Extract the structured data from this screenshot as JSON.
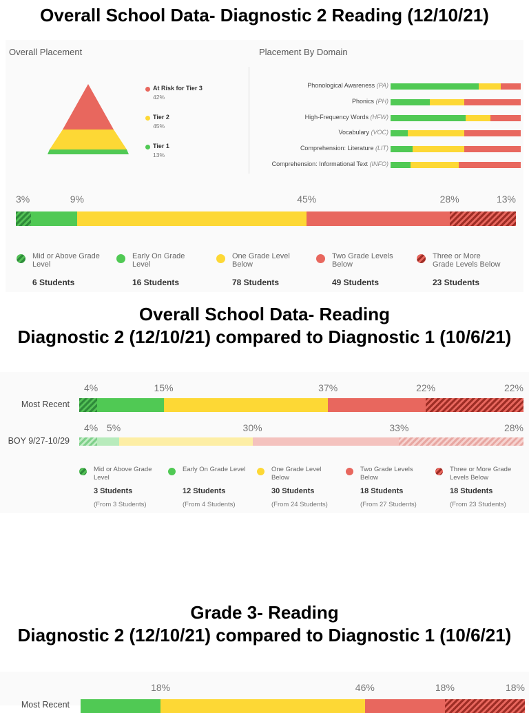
{
  "titles": {
    "t1": "Overall School Data- Diagnostic 2 Reading (12/10/21)",
    "t2a": "Overall School Data- Reading",
    "t2b": "Diagnostic 2 (12/10/21) compared to Diagnostic 1 (10/6/21)",
    "t3a": "Grade 3- Reading",
    "t3b": "Diagnostic 2 (12/10/21) compared to Diagnostic 1 (10/6/21)"
  },
  "colors": {
    "green": "#50c954",
    "green_dark": "#2e8b3a",
    "yellow": "#fdd835",
    "red": "#e8675e",
    "red_dark": "#a13027",
    "green_light": "#b8ebbc",
    "yellow_light": "#fdeea5",
    "red_light": "#f4c2be"
  },
  "placement": {
    "overall_label": "Overall Placement",
    "domain_label": "Placement By Domain",
    "tiers": [
      {
        "name": "At Risk for Tier 3",
        "pct": "42%",
        "color": "#e8675e"
      },
      {
        "name": "Tier 2",
        "pct": "45%",
        "color": "#fdd835"
      },
      {
        "name": "Tier 1",
        "pct": "13%",
        "color": "#50c954"
      }
    ],
    "domains": [
      {
        "name": "Phonological Awareness",
        "abbr": "(PA)",
        "green": 61,
        "yellow": 15,
        "red": 14
      },
      {
        "name": "Phonics",
        "abbr": "(PH)",
        "green": 27,
        "yellow": 24,
        "red": 39
      },
      {
        "name": "High-Frequency Words",
        "abbr": "(HFW)",
        "green": 52,
        "yellow": 17,
        "red": 21
      },
      {
        "name": "Vocabulary",
        "abbr": "(VOC)",
        "green": 12,
        "yellow": 39,
        "red": 39
      },
      {
        "name": "Comprehension: Literature",
        "abbr": "(LIT)",
        "green": 15,
        "yellow": 36,
        "red": 39
      },
      {
        "name": "Comprehension: Informational Text",
        "abbr": "(INFO)",
        "green": 14,
        "yellow": 33,
        "red": 43
      }
    ]
  },
  "legend_labels": [
    "Mid or Above Grade Level",
    "Early On Grade Level",
    "One Grade Level Below",
    "Two Grade Levels Below",
    "Three or More Grade Levels Below"
  ],
  "chart_data": [
    {
      "type": "bar",
      "title": "Overall School Data- Diagnostic 2 Reading (12/10/21)",
      "categories": [
        "Mid or Above Grade Level",
        "Early On Grade Level",
        "One Grade Level Below",
        "Two Grade Levels Below",
        "Three or More Grade Levels Below"
      ],
      "series": [
        {
          "values": [
            3,
            9,
            45,
            28,
            13
          ],
          "labels": [
            "3%",
            "9%",
            "45%",
            "28%",
            "13%"
          ]
        }
      ],
      "counts": [
        "6 Students",
        "16 Students",
        "78 Students",
        "49 Students",
        "23 Students"
      ]
    },
    {
      "type": "bar",
      "title": "Overall School Data- Reading Diagnostic 2 (12/10/21) compared to Diagnostic 1 (10/6/21)",
      "categories": [
        "Mid or Above Grade Level",
        "Early On Grade Level",
        "One Grade Level Below",
        "Two Grade Levels Below",
        "Three or More Grade Levels Below"
      ],
      "series": [
        {
          "name": "Most Recent",
          "values": [
            4,
            15,
            37,
            22,
            22
          ],
          "labels": [
            "4%",
            "15%",
            "37%",
            "22%",
            "22%"
          ]
        },
        {
          "name": "BOY 9/27-10/29",
          "values": [
            4,
            5,
            30,
            33,
            28
          ],
          "labels": [
            "4%",
            "5%",
            "30%",
            "33%",
            "28%"
          ]
        }
      ],
      "counts": [
        "3 Students",
        "12 Students",
        "30 Students",
        "18 Students",
        "18 Students"
      ],
      "from": [
        "(From 3 Students)",
        "(From 4 Students)",
        "(From 24 Students)",
        "(From 27 Students)",
        "(From 23 Students)"
      ]
    },
    {
      "type": "bar",
      "title": "Grade 3- Reading Diagnostic 2 (12/10/21) compared to Diagnostic 1 (10/6/21)",
      "categories": [
        "Mid or Above Grade Level",
        "Early On Grade Level",
        "One Grade Level Below",
        "Two Grade Levels Below",
        "Three or More Grade Levels Below"
      ],
      "series": [
        {
          "name": "Most Recent",
          "values": [
            0,
            18,
            46,
            18,
            18
          ],
          "labels": [
            "",
            "18%",
            "46%",
            "18%",
            "18%"
          ]
        }
      ]
    }
  ]
}
